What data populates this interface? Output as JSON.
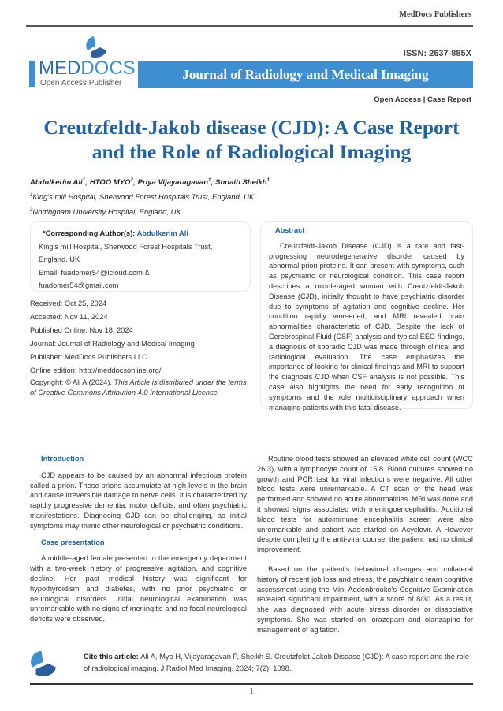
{
  "header": {
    "publisher": "MedDocs Publishers",
    "logo": {
      "name_part1": "MED",
      "name_part2": "DOCS",
      "tagline": "Open Access Publisher"
    },
    "issn": "ISSN: 2637-885X",
    "journal_band": "Journal of Radiology and Medical Imaging",
    "article_type": "Open Access | Case Report",
    "colors": {
      "brand_blue": "#3d8fd1",
      "title_blue": "#1f63a4"
    }
  },
  "title": {
    "line1": "Creutzfeldt-Jakob disease (CJD): A Case Report",
    "line2": "and the Role of Radiological Imaging"
  },
  "authors": {
    "list": [
      {
        "name": "Abdulkerim Ali",
        "sup": "1",
        "sep": "; "
      },
      {
        "name": "HTOO MYO",
        "sup": "2",
        "sep": "; "
      },
      {
        "name": "Priya Vijayaragavan",
        "sup": "1",
        "sep": "; "
      },
      {
        "name": "Shoaib Sheikh",
        "sup": "1",
        "sep": ""
      }
    ],
    "affiliations": [
      {
        "sup": "1",
        "text": "King's mill Hospital, Sherwood Forest Hospitals Trust, England, UK."
      },
      {
        "sup": "2",
        "text": "Nottingham University Hospital, England, UK."
      }
    ]
  },
  "corresponding": {
    "label": "*Corresponding Author(s): ",
    "name": "Abdulkerim Ali",
    "lines": [
      "King's mill Hospital, Sherwood Forest Hospitals Trust,",
      "England, UK",
      "Email: fuadomer54@icloud.com &",
      "fuadomer54@gmail.com"
    ]
  },
  "meta": {
    "received": "Received: Oct 25, 2024",
    "accepted": "Accepted: Nov 11, 2024",
    "published": "Published Online: Nov 18, 2024",
    "journal": "Journal: Journal of Radiology and Medical Imaging",
    "publisher": "Publisher: MedDocs Publishers LLC",
    "online": "Online edition: http://meddocsonline.org/",
    "copyright": "Copyright: © Ali A (2024). ",
    "license": "This Article is distributed under the terms of Creative Commons Attribution 4.0 International License"
  },
  "abstract": {
    "heading": "Abstract",
    "text": "Creutzfeldt-Jakob Disease (CJD) is a rare and fast-progressing neurodegenerative disorder caused by abnormal prion proteins. It can present with symptoms, such as psychiatric or neurological condition. This case report describes a middle-aged woman with Creutzfeldt-Jakob Disease (CJD), initially thought to have psychiatric disorder due to symptoms of agitation and cognitive decline. Her condition rapidly worsened, and MRI revealed brain abnormalities characteristic of CJD. Despite the lack of Cerebrospinal Fluid (CSF) analysis and typical EEG findings, a diagnosis of sporadic CJD was made through clinical and radiological evaluation. The case emphasizes the importance of looking for clinical findings and MRI to support the diagnosis CJD when CSF analysis is not possible. This case also highlights the need for early recognition of symptoms and the role multidisciplinary approach when managing patients with this fatal disease."
  },
  "body": {
    "introduction_heading": "Introduction",
    "introduction": "CJD appears to be caused by an abnormal infectious protein called a prion. These prions accumulate at high levels in the brain and cause irreversible damage to nerve cells. It is characterized by rapidly progressive dementia, motor deficits, and often psychiatric manifestations. Diagnosing CJD can be challenging, as initial symptoms may mimic other neurological or psychiatric conditions.",
    "case_heading": "Case presentation",
    "case_p1": "A middle-aged female presented to the emergency department with a two-week history of progressive agitation, and cognitive decline. Her past medical history was significant for hypothyroidism and diabetes, with no prior psychiatric or neurological disorders. Initial neurological examination was unremarkable with no signs of meningitis and no focal neurological deficits were observed.",
    "case_p2": "Routine blood tests showed an elevated white cell count (WCC 26.3), with a lymphocyte count of 15.8. Blood cultures showed no growth and PCR test for viral infections were negative. All other blood tests were unremarkable. A CT scan of the head was performed and showed no acute abnormalities. MRI was done and it showed signs associated with meningoencephalitis. Additional blood tests for autoimmune encephalitis screen were also unremarkable and patient was started on Acyclovir. A However despite completing the anti-viral course, the patient had no clinical improvement.",
    "case_p3": "Based on the patient's behavioral changes and collateral history of recent job loss and stress, the psychiatric team cognitive assessment using the Mini-Addenbrooke's Cognitive Examination revealed significant impairment, with a score of 8/30. As a result, she was diagnosed with acute stress disorder or dissociative symptoms. She was started on lorazepam and olanzapine for management of agitation."
  },
  "footer": {
    "cite_label": "Cite this article: ",
    "cite_text": "Ali A, Myo H, Vijayaragavan P, Sheikh S. Creutzfeldt-Jakob Disease (CJD): A case report and the role of radiological imaging. J Radiol Med Imaging. 2024; 7(2): 1098.",
    "page_number": "1"
  }
}
